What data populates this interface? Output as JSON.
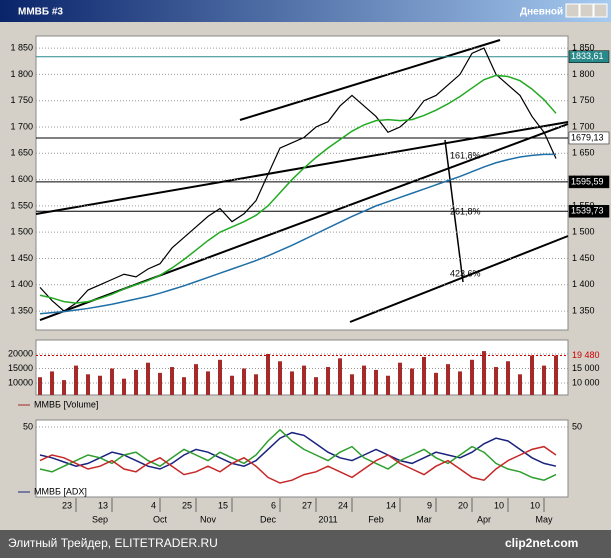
{
  "window": {
    "title": "ММВБ #3",
    "period": "Дневной"
  },
  "footer": {
    "left": "Элитный Трейдер, ELITETRADER.RU",
    "right": "clip2net.com"
  },
  "chart_data": [
    {
      "type": "line",
      "series": [
        {
          "color": "#000000",
          "values": [
            1395,
            1370,
            1350,
            1365,
            1390,
            1400,
            1410,
            1420,
            1415,
            1430,
            1440,
            1470,
            1490,
            1510,
            1530,
            1545,
            1520,
            1535,
            1560,
            1610,
            1660,
            1670,
            1680,
            1700,
            1710,
            1740,
            1760,
            1740,
            1720,
            1690,
            1700,
            1720,
            1750,
            1760,
            1780,
            1800,
            1840,
            1850,
            1800,
            1780,
            1760,
            1720,
            1690,
            1640
          ]
        },
        {
          "color": "#22aa22",
          "values": [
            1380,
            1375,
            1368,
            1365,
            1368,
            1374,
            1382,
            1392,
            1400,
            1408,
            1418,
            1432,
            1448,
            1466,
            1484,
            1500,
            1510,
            1520,
            1532,
            1550,
            1575,
            1600,
            1622,
            1642,
            1660,
            1676,
            1692,
            1704,
            1712,
            1714,
            1712,
            1714,
            1722,
            1732,
            1744,
            1758,
            1774,
            1790,
            1798,
            1796,
            1788,
            1772,
            1752,
            1726
          ]
        },
        {
          "color": "#1f6fa8",
          "values": [
            1345,
            1347,
            1349,
            1352,
            1355,
            1359,
            1363,
            1368,
            1373,
            1378,
            1384,
            1391,
            1398,
            1406,
            1414,
            1422,
            1430,
            1438,
            1446,
            1455,
            1465,
            1475,
            1486,
            1497,
            1508,
            1519,
            1530,
            1540,
            1550,
            1558,
            1566,
            1574,
            1582,
            1590,
            1598,
            1606,
            1615,
            1624,
            1632,
            1638,
            1643,
            1646,
            1648,
            1648
          ]
        }
      ],
      "levels": {
        "values": [
          1833.61,
          1679.13,
          1595.59,
          1539.73
        ],
        "value_labels": [
          "1833,61",
          "1679,13",
          "1595,59",
          "1539,73"
        ],
        "colors": [
          "#2a8a8a",
          "#ffffff",
          "#000000",
          "#000000"
        ]
      },
      "annotations": [
        "161,8%",
        "261,8%",
        "423,6%"
      ],
      "ylim": [
        1314,
        1873
      ],
      "yticks": [
        {
          "value": 1850,
          "label": "1 850"
        },
        {
          "value": 1800,
          "label": "1 800"
        },
        {
          "value": 1750,
          "label": "1 750"
        },
        {
          "value": 1700,
          "label": "1 700"
        },
        {
          "value": 1650,
          "label": "1 650"
        },
        {
          "value": 1600,
          "label": "1 600"
        },
        {
          "value": 1550,
          "label": "1 550"
        },
        {
          "value": 1500,
          "label": "1 500"
        },
        {
          "value": 1450,
          "label": "1 450"
        },
        {
          "value": 1400,
          "label": "1 400"
        },
        {
          "value": 1350,
          "label": "1 350"
        }
      ],
      "grid": true
    },
    {
      "type": "bar",
      "legend": "ММВБ [Volume]",
      "color": "#a52a2a",
      "values": [
        12000,
        14000,
        11000,
        16000,
        13000,
        12500,
        15000,
        11500,
        14500,
        17000,
        13500,
        15500,
        12000,
        16500,
        14000,
        18000,
        12500,
        15000,
        13000,
        20000,
        17500,
        14000,
        16000,
        12000,
        15500,
        18500,
        13000,
        16000,
        14500,
        12500,
        17000,
        15000,
        19000,
        13500,
        16500,
        14000,
        18000,
        21000,
        15500,
        17500,
        13000,
        19500,
        16000,
        19480
      ],
      "current": {
        "value": 19480,
        "label": "19 480"
      },
      "ylim": [
        5860,
        24830
      ],
      "yticks": [
        {
          "value": 20000,
          "label": "20000"
        },
        {
          "value": 15000,
          "label": "15000"
        },
        {
          "value": 10000,
          "label": "10000"
        }
      ],
      "y2ticks": [
        {
          "value": 15000,
          "label": "15 000"
        },
        {
          "value": 10000,
          "label": "10 000"
        }
      ]
    },
    {
      "type": "line",
      "series": [
        {
          "name": "ММВБ [ADX]",
          "color": "#1a237e",
          "values": [
            30,
            28,
            25,
            22,
            24,
            28,
            32,
            30,
            26,
            22,
            20,
            24,
            30,
            34,
            32,
            28,
            24,
            22,
            26,
            34,
            42,
            46,
            44,
            38,
            32,
            28,
            26,
            30,
            34,
            30,
            26,
            24,
            28,
            32,
            30,
            28,
            32,
            38,
            42,
            40,
            34,
            28,
            24,
            22
          ]
        },
        {
          "color": "#2e9e2e",
          "values": [
            20,
            18,
            22,
            26,
            30,
            28,
            24,
            30,
            32,
            26,
            22,
            28,
            34,
            30,
            26,
            32,
            28,
            24,
            30,
            40,
            48,
            40,
            34,
            30,
            26,
            32,
            36,
            28,
            24,
            20,
            26,
            30,
            34,
            28,
            24,
            30,
            36,
            32,
            24,
            20,
            18,
            14,
            12,
            16
          ]
        },
        {
          "color": "#c62828",
          "values": [
            26,
            30,
            28,
            24,
            20,
            22,
            26,
            20,
            18,
            24,
            28,
            22,
            16,
            18,
            22,
            18,
            24,
            28,
            22,
            14,
            10,
            12,
            16,
            18,
            22,
            18,
            14,
            20,
            26,
            30,
            24,
            20,
            16,
            22,
            26,
            20,
            14,
            12,
            20,
            26,
            30,
            34,
            36,
            30
          ]
        }
      ],
      "categories": [
        null,
        null,
        null,
        "23",
        null,
        null,
        "13",
        null,
        null,
        null,
        "4",
        null,
        null,
        "25",
        null,
        null,
        "15",
        null,
        null,
        null,
        "6",
        null,
        null,
        "27",
        null,
        null,
        "24",
        null,
        null,
        null,
        "14",
        null,
        null,
        "9",
        null,
        null,
        "20",
        null,
        null,
        "10",
        null,
        null,
        "10",
        null
      ],
      "month_labels": [
        null,
        null,
        null,
        null,
        null,
        "Sep",
        null,
        null,
        null,
        null,
        "Oct",
        null,
        null,
        null,
        "Nov",
        null,
        null,
        null,
        null,
        "Dec",
        null,
        null,
        null,
        null,
        "2011",
        null,
        null,
        null,
        "Feb",
        null,
        null,
        null,
        "Mar",
        null,
        null,
        null,
        null,
        "Apr",
        null,
        null,
        null,
        null,
        "May",
        null
      ],
      "ylim": [
        0,
        55
      ],
      "yticks": [
        50
      ]
    }
  ]
}
